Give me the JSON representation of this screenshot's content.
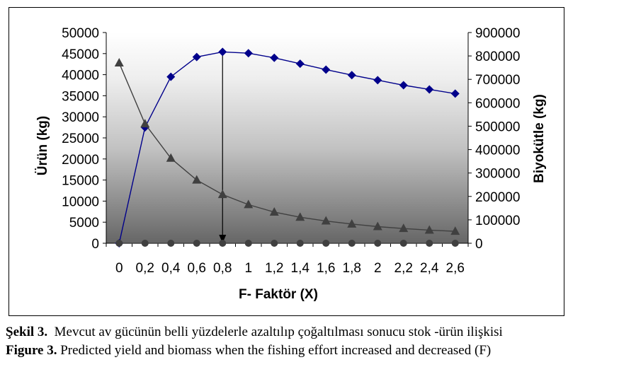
{
  "chart_data": {
    "type": "line",
    "xlabel": "F- Faktör (X)",
    "ylabel_left": "Ürün (kg)",
    "ylabel_right": "Biyokütle (kg)",
    "x": [
      "0",
      "0,2",
      "0,4",
      "0,6",
      "0,8",
      "1",
      "1,2",
      "1,4",
      "1,6",
      "1,8",
      "2",
      "2,2",
      "2,4",
      "2,6"
    ],
    "y_left_ticks": [
      "0",
      "5000",
      "10000",
      "15000",
      "20000",
      "25000",
      "30000",
      "35000",
      "40000",
      "45000",
      "50000"
    ],
    "y_right_ticks": [
      "0",
      "100000",
      "200000",
      "300000",
      "400000",
      "500000",
      "600000",
      "700000",
      "800000",
      "900000"
    ],
    "ylim_left": [
      0,
      50000
    ],
    "ylim_right": [
      0,
      900000
    ],
    "series": [
      {
        "axis": "left",
        "marker": "diamond",
        "color": "#00008b",
        "values": [
          0,
          27500,
          39500,
          44200,
          45400,
          45100,
          44000,
          42600,
          41200,
          39900,
          38700,
          37500,
          36500,
          35500
        ]
      },
      {
        "axis": "right",
        "marker": "triangle",
        "color": "#404040",
        "values": [
          770000,
          510000,
          363000,
          270000,
          208000,
          165000,
          133000,
          111000,
          95000,
          82000,
          71000,
          63000,
          56000,
          51000
        ]
      },
      {
        "axis": "left",
        "marker": "circle",
        "color": "#404040",
        "values": [
          0,
          0,
          0,
          0,
          0,
          0,
          0,
          0,
          0,
          0,
          0,
          0,
          0,
          0
        ]
      }
    ],
    "annotation_arrow_x": "0,8",
    "background": "gradient"
  },
  "captions": {
    "tr_prefix": "Şekil 3.",
    "tr_text": "  Mevcut av gücünün belli yüzdelerle azaltılıp çoğaltılması sonucu stok -ürün ilişkisi",
    "en_prefix": "Figure 3.",
    "en_text": " Predicted yield and biomass when the fishing effort increased and decreased (F)"
  }
}
